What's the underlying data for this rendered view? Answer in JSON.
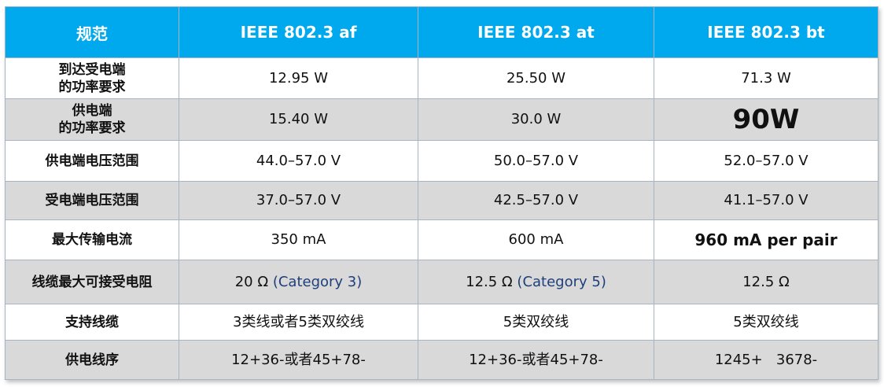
{
  "header": {
    "col0": "规范",
    "col1": "IEEE 802.3 af",
    "col2": "IEEE 802.3 at",
    "col3": "IEEE 802.3 bt"
  },
  "rows": [
    {
      "label_line1": "到达受电端",
      "label_line2": "的功率要求",
      "af": "12.95 W",
      "at": "25.50 W",
      "bt": "71.3 W"
    },
    {
      "label_line1": "供电端",
      "label_line2": "的功率要求",
      "af": "15.40 W",
      "at": "30.0 W",
      "bt": "90W"
    },
    {
      "label": "供电端电压范围",
      "af": "44.0–57.0 V",
      "at": "50.0–57.0 V",
      "bt": "52.0–57.0 V"
    },
    {
      "label": "受电端电压范围",
      "af": "37.0–57.0 V",
      "at": "42.5–57.0 V",
      "bt": "41.1–57.0 V"
    },
    {
      "label": "最大传输电流",
      "af": "350 mA",
      "at": "600 mA",
      "bt": "960 mA per pair"
    },
    {
      "label": "线缆最大可接受电阻",
      "af_value": "20 Ω",
      "af_link": "(Category 3)",
      "at_value": "12.5 Ω",
      "at_link": "(Category 5)",
      "bt": "12.5 Ω"
    },
    {
      "label": "支持线缆",
      "af": "3类线或者5类双绞线",
      "at": "5类双绞线",
      "bt": "5类双绞线"
    },
    {
      "label": "供电线序",
      "af": "12+36-或者45+78-",
      "at": "12+36-或者45+78-",
      "bt": "1245+   3678-"
    }
  ],
  "colors": {
    "header_bg": "#00a9ee",
    "alt_row_bg": "#d9d9d9",
    "border": "#a9b4c2"
  }
}
